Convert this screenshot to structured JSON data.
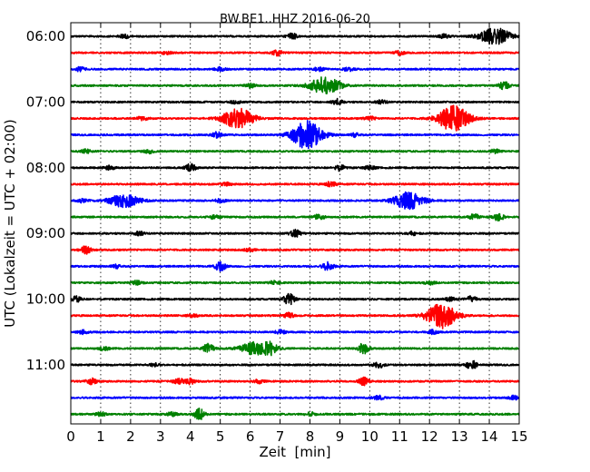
{
  "chart_data": {
    "type": "line",
    "title": "BW.BE1..HHZ 2016-06-20",
    "xlabel": "Zeit  [min]",
    "ylabel": "UTC (Lokalzeit = UTC + 02:00)",
    "xlim": [
      0,
      15
    ],
    "x_ticks": [
      "0",
      "1",
      "2",
      "3",
      "4",
      "5",
      "6",
      "7",
      "8",
      "9",
      "10",
      "11",
      "12",
      "13",
      "14",
      "15"
    ],
    "grid": "vertical dotted",
    "y_ticks": [
      "06:00",
      "07:00",
      "08:00",
      "09:00",
      "10:00",
      "11:00"
    ],
    "trace_colors": [
      "#000000",
      "#ff0000",
      "#0000ff",
      "#008000"
    ],
    "minutes_per_trace": 15,
    "traces": [
      {
        "start": "06:00",
        "color": "#000000",
        "events": [
          [
            14.2,
            9
          ],
          [
            7.4,
            3
          ],
          [
            1.8,
            2
          ],
          [
            12.5,
            2
          ]
        ]
      },
      {
        "start": "06:15",
        "color": "#ff0000",
        "events": [
          [
            6.9,
            3
          ],
          [
            11.0,
            2
          ],
          [
            3.2,
            1.5
          ]
        ]
      },
      {
        "start": "06:30",
        "color": "#0000ff",
        "events": [
          [
            5.0,
            2
          ],
          [
            8.3,
            2
          ],
          [
            9.3,
            2
          ],
          [
            0.3,
            2
          ]
        ]
      },
      {
        "start": "06:45",
        "color": "#008000",
        "events": [
          [
            8.5,
            9
          ],
          [
            14.5,
            4
          ],
          [
            6.0,
            2
          ]
        ]
      },
      {
        "start": "07:00",
        "color": "#000000",
        "events": [
          [
            8.9,
            3
          ],
          [
            10.4,
            2
          ],
          [
            5.5,
            1.5
          ]
        ]
      },
      {
        "start": "07:15",
        "color": "#ff0000",
        "events": [
          [
            5.6,
            11
          ],
          [
            12.8,
            14
          ],
          [
            2.4,
            2
          ],
          [
            10.0,
            2
          ]
        ]
      },
      {
        "start": "07:30",
        "color": "#0000ff",
        "events": [
          [
            7.9,
            15
          ],
          [
            4.9,
            3
          ],
          [
            9.5,
            2
          ]
        ]
      },
      {
        "start": "07:45",
        "color": "#008000",
        "events": [
          [
            0.5,
            2
          ],
          [
            2.6,
            2
          ],
          [
            14.2,
            2
          ]
        ]
      },
      {
        "start": "08:00",
        "color": "#000000",
        "events": [
          [
            4.0,
            4
          ],
          [
            9.0,
            3
          ],
          [
            1.3,
            2
          ],
          [
            10.0,
            2
          ]
        ]
      },
      {
        "start": "08:15",
        "color": "#ff0000",
        "events": [
          [
            8.7,
            3
          ],
          [
            5.2,
            1.5
          ]
        ]
      },
      {
        "start": "08:30",
        "color": "#0000ff",
        "events": [
          [
            1.8,
            7
          ],
          [
            11.3,
            9
          ],
          [
            0.4,
            2
          ],
          [
            5.0,
            2
          ]
        ]
      },
      {
        "start": "08:45",
        "color": "#008000",
        "events": [
          [
            8.3,
            3
          ],
          [
            13.5,
            3
          ],
          [
            14.3,
            4
          ],
          [
            4.8,
            2
          ]
        ]
      },
      {
        "start": "09:00",
        "color": "#000000",
        "events": [
          [
            7.5,
            4
          ],
          [
            2.3,
            2
          ],
          [
            11.4,
            2
          ]
        ]
      },
      {
        "start": "09:15",
        "color": "#ff0000",
        "events": [
          [
            0.5,
            4
          ],
          [
            6.0,
            1.5
          ]
        ]
      },
      {
        "start": "09:30",
        "color": "#0000ff",
        "events": [
          [
            5.0,
            5
          ],
          [
            8.6,
            5
          ],
          [
            1.5,
            2
          ]
        ]
      },
      {
        "start": "09:45",
        "color": "#008000",
        "events": [
          [
            2.2,
            2
          ],
          [
            6.8,
            2
          ],
          [
            12.0,
            2
          ]
        ]
      },
      {
        "start": "10:00",
        "color": "#000000",
        "events": [
          [
            0.2,
            3
          ],
          [
            7.3,
            6
          ],
          [
            12.7,
            2
          ],
          [
            13.4,
            3
          ]
        ]
      },
      {
        "start": "10:15",
        "color": "#ff0000",
        "events": [
          [
            12.4,
            14
          ],
          [
            7.3,
            3
          ],
          [
            4.1,
            1.5
          ]
        ]
      },
      {
        "start": "10:30",
        "color": "#0000ff",
        "events": [
          [
            0.4,
            2
          ],
          [
            7.0,
            2
          ],
          [
            12.1,
            2
          ]
        ]
      },
      {
        "start": "10:45",
        "color": "#008000",
        "events": [
          [
            4.6,
            5
          ],
          [
            6.2,
            7
          ],
          [
            6.7,
            6
          ],
          [
            9.8,
            6
          ],
          [
            1.1,
            2
          ]
        ]
      },
      {
        "start": "11:00",
        "color": "#000000",
        "events": [
          [
            13.4,
            5
          ],
          [
            10.3,
            3
          ],
          [
            2.8,
            1.5
          ]
        ]
      },
      {
        "start": "11:15",
        "color": "#ff0000",
        "events": [
          [
            0.7,
            3
          ],
          [
            3.6,
            3
          ],
          [
            4.0,
            3
          ],
          [
            9.8,
            4
          ],
          [
            6.3,
            2
          ]
        ]
      },
      {
        "start": "11:30",
        "color": "#0000ff",
        "events": [
          [
            10.3,
            2
          ],
          [
            14.8,
            2
          ]
        ]
      },
      {
        "start": "11:45",
        "color": "#008000",
        "events": [
          [
            4.3,
            6
          ],
          [
            1.0,
            2
          ],
          [
            3.4,
            2
          ],
          [
            8.0,
            2
          ]
        ]
      }
    ]
  }
}
